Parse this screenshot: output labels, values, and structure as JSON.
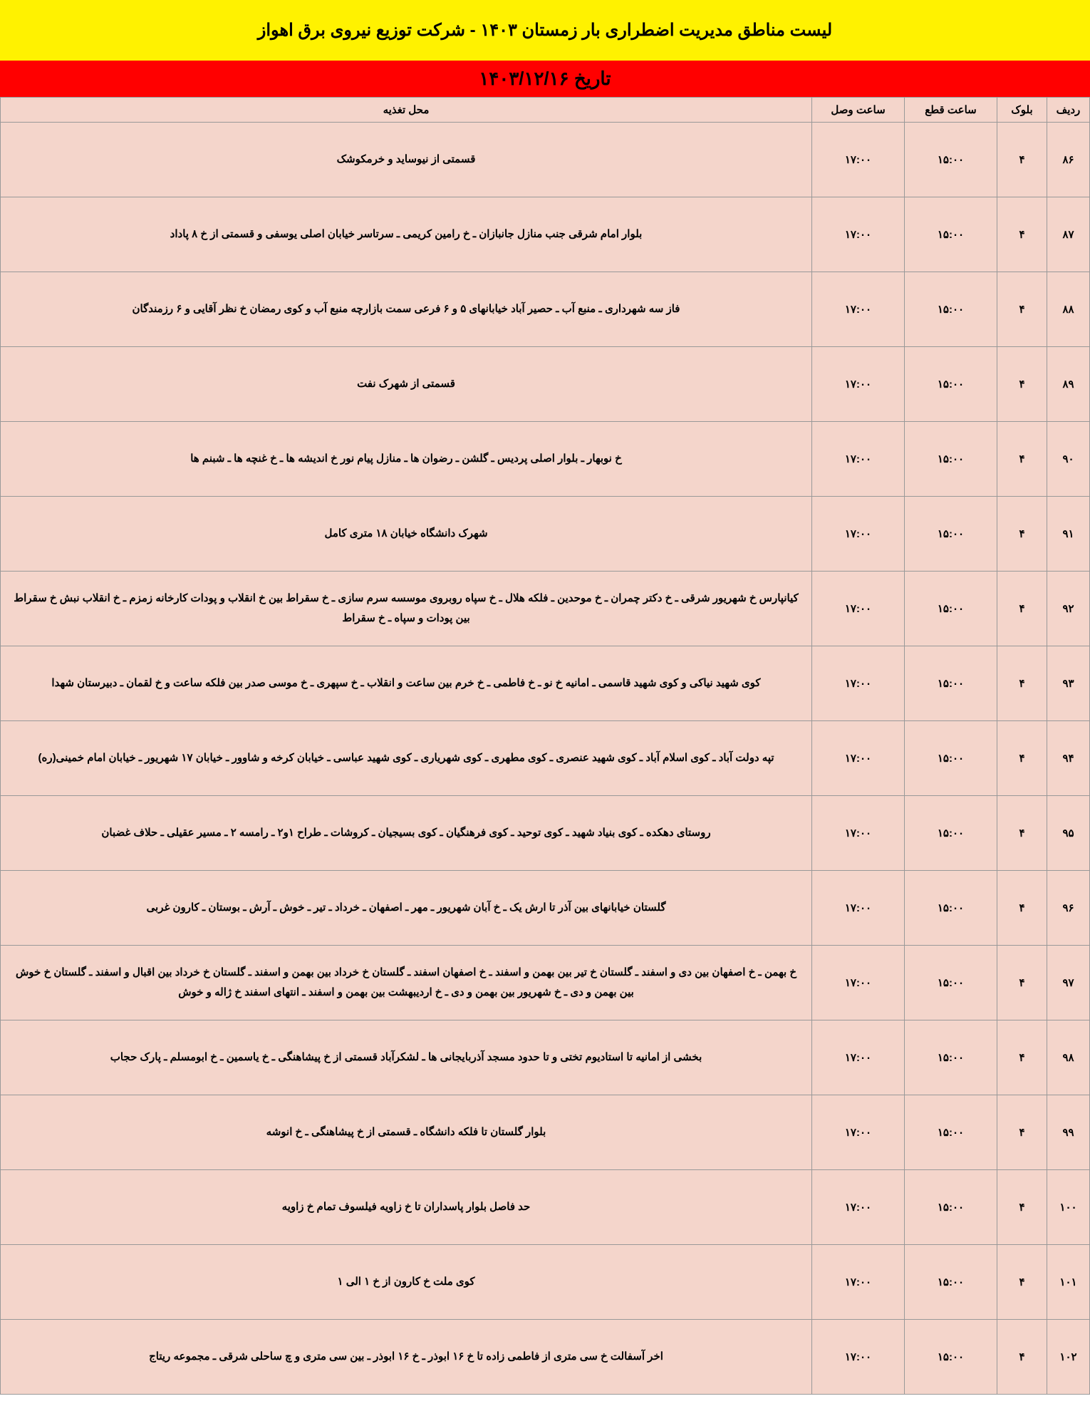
{
  "title": "لیست مناطق مدیریت اضطراری بار زمستان ۱۴۰۳ - شرکت توزیع نیروی برق اهواز",
  "date_line": "تاریخ ۱۴۰۳/۱۲/۱۶",
  "columns": {
    "radif": "ردیف",
    "block": "بلوک",
    "ghat": "ساعت قطع",
    "vasl": "ساعت وصل",
    "mahal": "محل تغذیه"
  },
  "colors": {
    "title_bg": "#fff200",
    "date_bg": "#ff0000",
    "cell_bg": "#f4d5cb",
    "border": "#999999",
    "text": "#000000"
  },
  "rows": [
    {
      "radif": "۸۶",
      "block": "۴",
      "ghat": "۱۵:۰۰",
      "vasl": "۱۷:۰۰",
      "mahal": "قسمتی از نیوساید و خرمکوشک"
    },
    {
      "radif": "۸۷",
      "block": "۴",
      "ghat": "۱۵:۰۰",
      "vasl": "۱۷:۰۰",
      "mahal": "بلوار امام شرقی جنب منازل جانبازان ـ خ رامین کریمی ـ سرتاسر خیابان اصلی یوسفی و قسمتی از خ ۸ پاداد"
    },
    {
      "radif": "۸۸",
      "block": "۴",
      "ghat": "۱۵:۰۰",
      "vasl": "۱۷:۰۰",
      "mahal": "فاز سه شهرداری ـ منبع آب ـ حصیر آباد خیابانهای ۵ و ۶ فرعی سمت بازارچه منبع آب و کوی رمضان خ نظر آقایی و ۶ رزمندگان"
    },
    {
      "radif": "۸۹",
      "block": "۴",
      "ghat": "۱۵:۰۰",
      "vasl": "۱۷:۰۰",
      "mahal": "قسمتی از شهرک نفت"
    },
    {
      "radif": "۹۰",
      "block": "۴",
      "ghat": "۱۵:۰۰",
      "vasl": "۱۷:۰۰",
      "mahal": "خ نوبهار ـ بلوار اصلی پردیس ـ گلشن ـ رضوان ها ـ منازل پیام نور خ اندیشه ها ـ خ غنچه ها ـ شبنم ها"
    },
    {
      "radif": "۹۱",
      "block": "۴",
      "ghat": "۱۵:۰۰",
      "vasl": "۱۷:۰۰",
      "mahal": "شهرک دانشگاه خیابان ۱۸ متری کامل"
    },
    {
      "radif": "۹۲",
      "block": "۴",
      "ghat": "۱۵:۰۰",
      "vasl": "۱۷:۰۰",
      "mahal": "کیانپارس خ شهریور شرقی ـ خ دکتر چمران ـ خ موحدین ـ فلکه هلال ـ خ سپاه روبروی موسسه سرم سازی ـ خ سقراط بین خ انقلاب و پودات  کارخانه زمزم ـ خ انقلاب نبش خ سقراط بین پودات و سپاه ـ خ سقراط"
    },
    {
      "radif": "۹۳",
      "block": "۴",
      "ghat": "۱۵:۰۰",
      "vasl": "۱۷:۰۰",
      "mahal": "کوی شهید نیاکی و کوی شهید قاسمی ـ امانیه خ نو ـ خ فاطمی ـ خ خرم بین ساعت و انقلاب ـ خ سپهری ـ خ موسی صدر بین فلکه ساعت و خ لقمان ـ دبیرستان شهدا"
    },
    {
      "radif": "۹۴",
      "block": "۴",
      "ghat": "۱۵:۰۰",
      "vasl": "۱۷:۰۰",
      "mahal": "تپه دولت آباد ـ کوی اسلام آباد ـ کوی شهید عنصری ـ کوی مطهری ـ کوی شهریاری ـ کوی شهید عباسی ـ خیابان کرخه و شاوور ـ خیابان ۱۷ شهریور ـ خیابان امام خمینی(ره)"
    },
    {
      "radif": "۹۵",
      "block": "۴",
      "ghat": "۱۵:۰۰",
      "vasl": "۱۷:۰۰",
      "mahal": "روستای دهکده ـ کوی بنیاد شهید ـ کوی توحید ـ کوی فرهنگیان ـ کوی بسیجیان ـ کروشات ـ طراح ۱و۲ ـ رامسه ۲ ـ مسیر عقیلی ـ حلاف غضبان"
    },
    {
      "radif": "۹۶",
      "block": "۴",
      "ghat": "۱۵:۰۰",
      "vasl": "۱۷:۰۰",
      "mahal": "گلستان خیابانهای بین آذر تا ارش یک ـ خ آبان شهریور ـ مهر ـ اصفهان ـ خرداد ـ تیر ـ خوش ـ آرش ـ بوستان ـ کارون غربی"
    },
    {
      "radif": "۹۷",
      "block": "۴",
      "ghat": "۱۵:۰۰",
      "vasl": "۱۷:۰۰",
      "mahal": "خ بهمن ـ خ اصفهان بین دی و اسفند ـ گلستان خ تیر بین بهمن و اسفند ـ خ اصفهان اسفند ـ گلستان خ خرداد بین بهمن و اسفند ـ گلستان خ خرداد بین اقبال و اسفند ـ گلستان خ خوش بین بهمن و دی ـ خ شهریور بین بهمن و دی ـ خ اردیبهشت بین بهمن و اسفند ـ انتهای اسفند خ ژاله و خوش"
    },
    {
      "radif": "۹۸",
      "block": "۴",
      "ghat": "۱۵:۰۰",
      "vasl": "۱۷:۰۰",
      "mahal": "بخشی از امانیه تا استادیوم تختی و تا حدود مسجد آذربایجانی ها ـ لشکرآباد قسمتی از خ پیشاهنگی ـ خ یاسمین ـ خ ابومسلم ـ پارک حجاب"
    },
    {
      "radif": "۹۹",
      "block": "۴",
      "ghat": "۱۵:۰۰",
      "vasl": "۱۷:۰۰",
      "mahal": "بلوار گلستان تا فلکه دانشگاه ـ قسمتی از خ پیشاهنگی ـ خ انوشه"
    },
    {
      "radif": "۱۰۰",
      "block": "۴",
      "ghat": "۱۵:۰۰",
      "vasl": "۱۷:۰۰",
      "mahal": "حد فاصل بلوار پاسداران تا خ زاویه فیلسوف تمام خ زاویه"
    },
    {
      "radif": "۱۰۱",
      "block": "۴",
      "ghat": "۱۵:۰۰",
      "vasl": "۱۷:۰۰",
      "mahal": "کوی ملت خ کارون از خ ۱ الی ۱"
    },
    {
      "radif": "۱۰۲",
      "block": "۴",
      "ghat": "۱۵:۰۰",
      "vasl": "۱۷:۰۰",
      "mahal": "اخر آسفالت خ سی متری از فاطمی زاده تا خ ۱۶ ابوذر ـ خ ۱۶ ابوذر ـ بین سی متری و چ ساحلی شرقی ـ مجموعه ریتاج"
    }
  ]
}
